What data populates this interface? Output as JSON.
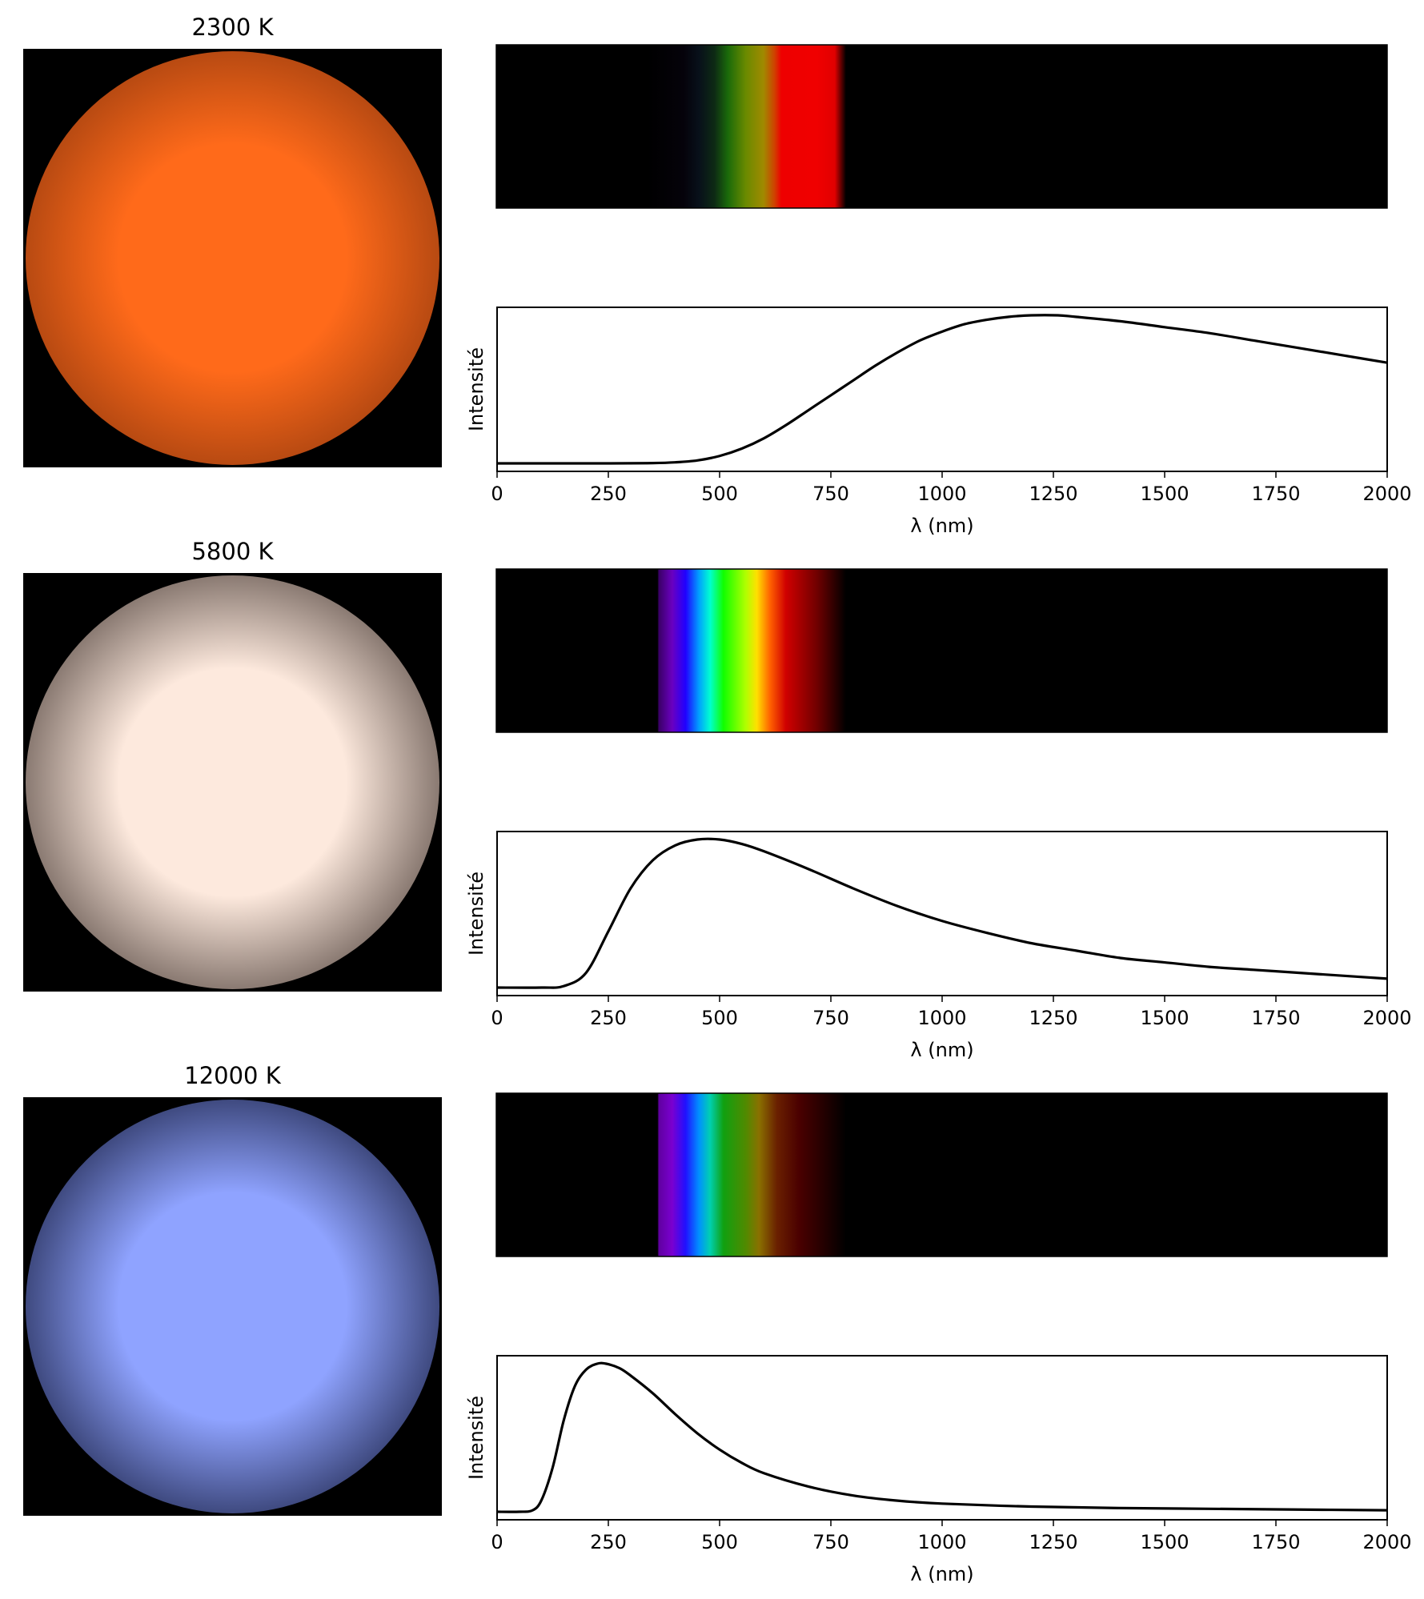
{
  "colors": {
    "background": "#ffffff",
    "axes": "#000000",
    "curve": "#000000"
  },
  "chart_data": [
    {
      "type": "line",
      "title": "2300 K",
      "temperature_K": 2300,
      "star_color": "#ff6a1a",
      "star_limb_color": "#b84a12",
      "xlabel": "λ (nm)",
      "ylabel": "Intensité",
      "xlim": [
        0,
        2000
      ],
      "xticks": [
        0,
        250,
        500,
        750,
        1000,
        1250,
        1500,
        1750,
        2000
      ],
      "grid": false,
      "spectrum_stops": [
        {
          "nm": 0,
          "color": "#000000"
        },
        {
          "nm": 340,
          "color": "#000000"
        },
        {
          "nm": 420,
          "color": "#05020a"
        },
        {
          "nm": 455,
          "color": "#08101a"
        },
        {
          "nm": 490,
          "color": "#0d2a14"
        },
        {
          "nm": 520,
          "color": "#1a6a0a"
        },
        {
          "nm": 560,
          "color": "#6a8a00"
        },
        {
          "nm": 600,
          "color": "#a08a00"
        },
        {
          "nm": 625,
          "color": "#d04000"
        },
        {
          "nm": 640,
          "color": "#ee0000"
        },
        {
          "nm": 720,
          "color": "#f00000"
        },
        {
          "nm": 760,
          "color": "#e00000"
        },
        {
          "nm": 785,
          "color": "#000000"
        },
        {
          "nm": 2000,
          "color": "#000000"
        }
      ],
      "curve": {
        "x": [
          0,
          250,
          350,
          400,
          450,
          500,
          550,
          600,
          650,
          700,
          750,
          800,
          850,
          900,
          950,
          1000,
          1050,
          1100,
          1150,
          1200,
          1260,
          1300,
          1400,
          1500,
          1600,
          1700,
          1800,
          1900,
          2000
        ],
        "y": [
          0,
          0,
          0.002,
          0.007,
          0.02,
          0.05,
          0.1,
          0.17,
          0.26,
          0.36,
          0.46,
          0.56,
          0.66,
          0.75,
          0.83,
          0.89,
          0.94,
          0.97,
          0.99,
          1.0,
          1.0,
          0.99,
          0.96,
          0.92,
          0.88,
          0.83,
          0.78,
          0.73,
          0.68
        ]
      }
    },
    {
      "type": "line",
      "title": "5800 K",
      "temperature_K": 5800,
      "star_color": "#fde9dd",
      "star_limb_color": "#8a7a72",
      "xlabel": "λ (nm)",
      "ylabel": "Intensité",
      "xlim": [
        0,
        2000
      ],
      "xticks": [
        0,
        250,
        500,
        750,
        1000,
        1250,
        1500,
        1750,
        2000
      ],
      "grid": false,
      "spectrum_stops": [
        {
          "nm": 0,
          "color": "#000000"
        },
        {
          "nm": 362,
          "color": "#000000"
        },
        {
          "nm": 365,
          "color": "#3a0066"
        },
        {
          "nm": 395,
          "color": "#6a00c0"
        },
        {
          "nm": 425,
          "color": "#2000ff"
        },
        {
          "nm": 455,
          "color": "#00a0ff"
        },
        {
          "nm": 480,
          "color": "#00ffd0"
        },
        {
          "nm": 510,
          "color": "#10ff00"
        },
        {
          "nm": 560,
          "color": "#b0ff00"
        },
        {
          "nm": 585,
          "color": "#ffe000"
        },
        {
          "nm": 615,
          "color": "#ff6000"
        },
        {
          "nm": 650,
          "color": "#d00000"
        },
        {
          "nm": 720,
          "color": "#700000"
        },
        {
          "nm": 785,
          "color": "#000000"
        },
        {
          "nm": 2000,
          "color": "#000000"
        }
      ],
      "curve": {
        "x": [
          0,
          100,
          150,
          200,
          250,
          300,
          350,
          400,
          450,
          500,
          550,
          600,
          700,
          800,
          900,
          1000,
          1100,
          1200,
          1300,
          1400,
          1500,
          1600,
          1700,
          1800,
          1900,
          2000
        ],
        "y": [
          0,
          0,
          0.01,
          0.1,
          0.38,
          0.67,
          0.86,
          0.96,
          1.0,
          1.0,
          0.97,
          0.92,
          0.8,
          0.67,
          0.55,
          0.45,
          0.37,
          0.3,
          0.25,
          0.2,
          0.17,
          0.14,
          0.12,
          0.1,
          0.08,
          0.06
        ]
      }
    },
    {
      "type": "line",
      "title": "12000 K",
      "temperature_K": 12000,
      "star_color": "#8fa3ff",
      "star_limb_color": "#3f4a80",
      "xlabel": "λ (nm)",
      "ylabel": "Intensité",
      "xlim": [
        0,
        2000
      ],
      "xticks": [
        0,
        250,
        500,
        750,
        1000,
        1250,
        1500,
        1750,
        2000
      ],
      "grid": false,
      "spectrum_stops": [
        {
          "nm": 0,
          "color": "#000000"
        },
        {
          "nm": 362,
          "color": "#000000"
        },
        {
          "nm": 365,
          "color": "#6000a0"
        },
        {
          "nm": 395,
          "color": "#7a00d0"
        },
        {
          "nm": 425,
          "color": "#2010ff"
        },
        {
          "nm": 455,
          "color": "#0090ff"
        },
        {
          "nm": 480,
          "color": "#00d0b0"
        },
        {
          "nm": 510,
          "color": "#10a010"
        },
        {
          "nm": 560,
          "color": "#508a00"
        },
        {
          "nm": 590,
          "color": "#8a7000"
        },
        {
          "nm": 630,
          "color": "#6a2000"
        },
        {
          "nm": 680,
          "color": "#4a0000"
        },
        {
          "nm": 740,
          "color": "#200000"
        },
        {
          "nm": 785,
          "color": "#000000"
        },
        {
          "nm": 2000,
          "color": "#000000"
        }
      ],
      "curve": {
        "x": [
          0,
          50,
          80,
          100,
          125,
          150,
          175,
          200,
          225,
          245,
          275,
          300,
          350,
          400,
          450,
          500,
          550,
          600,
          700,
          800,
          900,
          1000,
          1200,
          1400,
          1600,
          1800,
          2000
        ],
        "y": [
          0,
          0,
          0.01,
          0.08,
          0.3,
          0.62,
          0.85,
          0.96,
          1.0,
          1.0,
          0.97,
          0.92,
          0.8,
          0.66,
          0.53,
          0.42,
          0.33,
          0.26,
          0.17,
          0.11,
          0.075,
          0.055,
          0.035,
          0.025,
          0.02,
          0.015,
          0.01
        ]
      }
    }
  ]
}
